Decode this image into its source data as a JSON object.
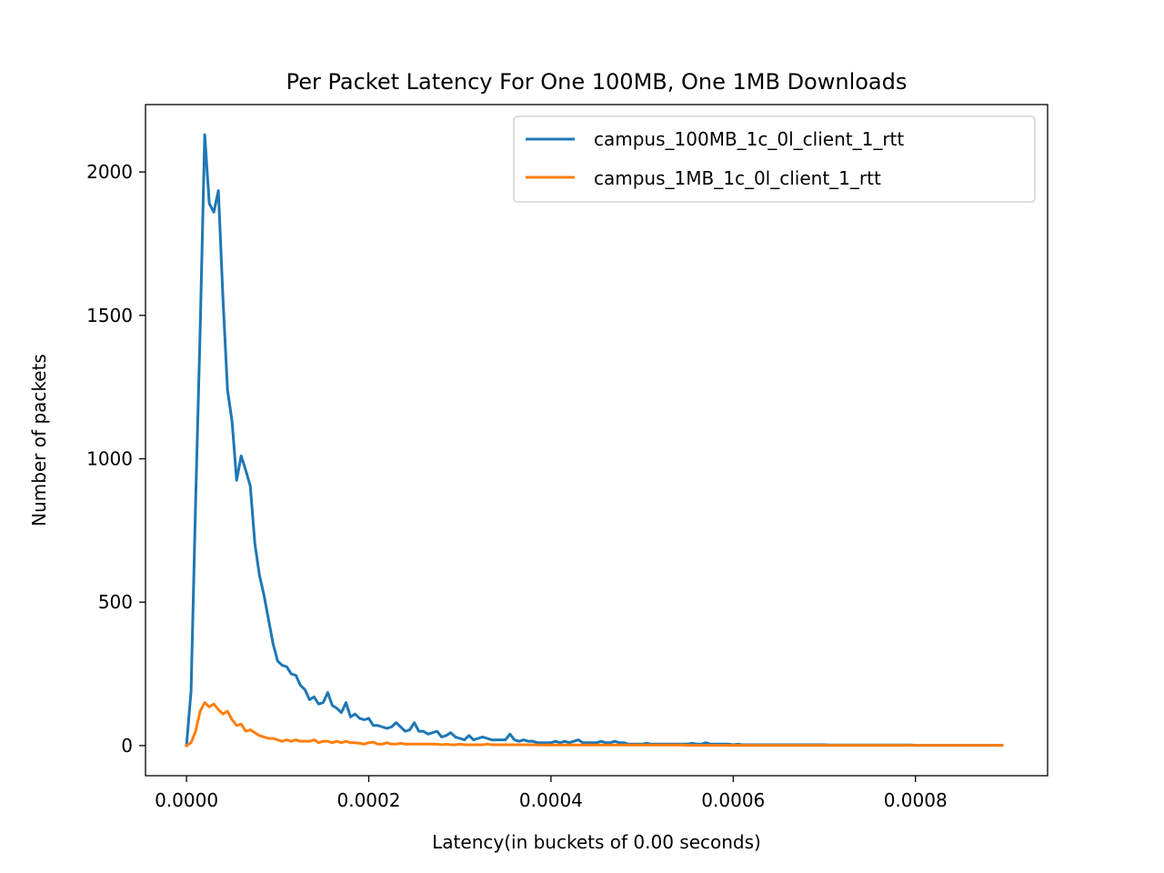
{
  "chart_data": {
    "type": "line",
    "title": "Per Packet Latency For One 100MB, One 1MB Downloads",
    "xlabel": "Latency(in buckets of 0.00 seconds)",
    "ylabel": "Number of packets",
    "xlim": [
      -4.5e-05,
      0.000945
    ],
    "ylim": [
      -105,
      2235
    ],
    "xticks": [
      0.0,
      0.0002,
      0.0004,
      0.0006,
      0.0008
    ],
    "xtick_labels": [
      "0.0000",
      "0.0002",
      "0.0004",
      "0.0006",
      "0.0008"
    ],
    "yticks": [
      0,
      500,
      1000,
      1500,
      2000
    ],
    "ytick_labels": [
      "0",
      "500",
      "1000",
      "1500",
      "2000"
    ],
    "grid": false,
    "legend_position": "top-right",
    "series": [
      {
        "name": "campus_100MB_1c_0l_client_1_rtt",
        "color": "#1f77b4",
        "x": [
          0.0,
          5e-06,
          1e-05,
          1.5e-05,
          2e-05,
          2.5e-05,
          3e-05,
          3.5e-05,
          4e-05,
          4.5e-05,
          5e-05,
          5.5e-05,
          6e-05,
          6.5e-05,
          7e-05,
          7.5e-05,
          8e-05,
          8.5e-05,
          9e-05,
          9.5e-05,
          0.0001,
          0.000105,
          0.00011,
          0.000115,
          0.00012,
          0.000125,
          0.00013,
          0.000135,
          0.00014,
          0.000145,
          0.00015,
          0.000155,
          0.00016,
          0.000165,
          0.00017,
          0.000175,
          0.00018,
          0.000185,
          0.00019,
          0.000195,
          0.0002,
          0.000205,
          0.00021,
          0.000215,
          0.00022,
          0.000225,
          0.00023,
          0.000235,
          0.00024,
          0.000245,
          0.00025,
          0.000255,
          0.00026,
          0.000265,
          0.00027,
          0.000275,
          0.00028,
          0.000285,
          0.00029,
          0.000295,
          0.0003,
          0.000305,
          0.00031,
          0.000315,
          0.00032,
          0.000325,
          0.00033,
          0.000335,
          0.00034,
          0.000345,
          0.00035,
          0.000355,
          0.00036,
          0.000365,
          0.00037,
          0.000375,
          0.00038,
          0.000385,
          0.00039,
          0.000395,
          0.0004,
          0.000405,
          0.00041,
          0.000415,
          0.00042,
          0.000425,
          0.00043,
          0.000435,
          0.00044,
          0.000445,
          0.00045,
          0.000455,
          0.00046,
          0.000465,
          0.00047,
          0.000475,
          0.00048,
          0.000485,
          0.00049,
          0.000495,
          0.0005,
          0.000505,
          0.00051,
          0.000515,
          0.00052,
          0.000525,
          0.00053,
          0.000535,
          0.00054,
          0.000545,
          0.00055,
          0.000555,
          0.00056,
          0.000565,
          0.00057,
          0.000575,
          0.00058,
          0.000585,
          0.00059,
          0.000595,
          0.0006,
          0.000605,
          0.00061,
          0.000615,
          0.00062,
          0.000625,
          0.00063,
          0.000635,
          0.00064,
          0.000645,
          0.00065,
          0.000655,
          0.00066,
          0.000665,
          0.00067,
          0.000675,
          0.00068,
          0.000685,
          0.00069,
          0.000695,
          0.0007,
          0.000705,
          0.00071,
          0.000715,
          0.00072,
          0.000725,
          0.00073,
          0.000735,
          0.00074,
          0.000745,
          0.00075,
          0.000755,
          0.00076,
          0.000765,
          0.00077,
          0.000775,
          0.00078,
          0.000785,
          0.00079,
          0.000795,
          0.0008,
          0.000805,
          0.00081,
          0.000815,
          0.00082,
          0.000825,
          0.00083,
          0.000835,
          0.00084,
          0.000845,
          0.00085,
          0.000855,
          0.00086,
          0.000865,
          0.00087,
          0.000875,
          0.00088,
          0.000885,
          0.00089,
          0.000895
        ],
        "y": [
          0,
          190,
          850,
          1450,
          2130,
          1890,
          1860,
          1935,
          1560,
          1240,
          1130,
          925,
          1010,
          960,
          905,
          705,
          595,
          525,
          440,
          355,
          295,
          280,
          275,
          250,
          245,
          210,
          195,
          160,
          170,
          145,
          150,
          185,
          140,
          130,
          115,
          150,
          100,
          110,
          95,
          90,
          95,
          70,
          70,
          65,
          60,
          65,
          80,
          65,
          50,
          55,
          80,
          50,
          50,
          40,
          45,
          50,
          30,
          35,
          45,
          30,
          25,
          20,
          35,
          20,
          25,
          30,
          25,
          20,
          20,
          20,
          20,
          40,
          20,
          15,
          20,
          15,
          15,
          10,
          10,
          10,
          10,
          15,
          10,
          15,
          10,
          15,
          20,
          10,
          10,
          10,
          10,
          15,
          10,
          10,
          15,
          10,
          10,
          5,
          5,
          5,
          5,
          8,
          5,
          5,
          5,
          5,
          5,
          5,
          5,
          5,
          5,
          8,
          5,
          5,
          10,
          5,
          5,
          5,
          5,
          5,
          3,
          5,
          3,
          3,
          3,
          3,
          3,
          3,
          3,
          3,
          3,
          3,
          3,
          3,
          3,
          3,
          3,
          3,
          3,
          3,
          3,
          2,
          2,
          2,
          2,
          2,
          2,
          2,
          2,
          2,
          2,
          2,
          2,
          2,
          2,
          2,
          2,
          2,
          2,
          2,
          1,
          1,
          1,
          1,
          1,
          1,
          1,
          1,
          1,
          1,
          1,
          1,
          1,
          1,
          1,
          1,
          1,
          1,
          1,
          1
        ]
      },
      {
        "name": "campus_1MB_1c_0l_client_1_rtt",
        "color": "#ff7f0e",
        "x": [
          0.0,
          5e-06,
          1e-05,
          1.5e-05,
          2e-05,
          2.5e-05,
          3e-05,
          3.5e-05,
          4e-05,
          4.5e-05,
          5e-05,
          5.5e-05,
          6e-05,
          6.5e-05,
          7e-05,
          7.5e-05,
          8e-05,
          8.5e-05,
          9e-05,
          9.5e-05,
          0.0001,
          0.000105,
          0.00011,
          0.000115,
          0.00012,
          0.000125,
          0.00013,
          0.000135,
          0.00014,
          0.000145,
          0.00015,
          0.000155,
          0.00016,
          0.000165,
          0.00017,
          0.000175,
          0.00018,
          0.000185,
          0.00019,
          0.000195,
          0.0002,
          0.000205,
          0.00021,
          0.000215,
          0.00022,
          0.000225,
          0.00023,
          0.000235,
          0.00024,
          0.000245,
          0.00025,
          0.000255,
          0.00026,
          0.000265,
          0.00027,
          0.000275,
          0.00028,
          0.000285,
          0.00029,
          0.000295,
          0.0003,
          0.000305,
          0.00031,
          0.000315,
          0.00032,
          0.000325,
          0.00033,
          0.000335,
          0.00034,
          0.000345,
          0.00035,
          0.000355,
          0.00036,
          0.000365,
          0.00037,
          0.000375,
          0.00038,
          0.000385,
          0.00039,
          0.000395,
          0.0004,
          0.000405,
          0.00041,
          0.000415,
          0.00042,
          0.000425,
          0.00043,
          0.000435,
          0.00044,
          0.000445,
          0.00045,
          0.000455,
          0.00046,
          0.000465,
          0.00047,
          0.000475,
          0.00048,
          0.000485,
          0.00049,
          0.000495,
          0.0005,
          0.000505,
          0.00051,
          0.000515,
          0.00052,
          0.000525,
          0.00053,
          0.000535,
          0.00054,
          0.000545,
          0.00055,
          0.000555,
          0.00056,
          0.000565,
          0.00057,
          0.000575,
          0.00058,
          0.000585,
          0.00059,
          0.000595,
          0.0006,
          0.000605,
          0.00061,
          0.000615,
          0.00062,
          0.000625,
          0.00063,
          0.000635,
          0.00064,
          0.000645,
          0.00065,
          0.000655,
          0.00066,
          0.000665,
          0.00067,
          0.000675,
          0.00068,
          0.000685,
          0.00069,
          0.000695,
          0.0007,
          0.000705,
          0.00071,
          0.000715,
          0.00072,
          0.000725,
          0.00073,
          0.000735,
          0.00074,
          0.000745,
          0.00075,
          0.000755,
          0.00076,
          0.000765,
          0.00077,
          0.000775,
          0.00078,
          0.000785,
          0.00079,
          0.000795,
          0.0008,
          0.000805,
          0.00081,
          0.000815,
          0.00082,
          0.000825,
          0.00083,
          0.000835,
          0.00084,
          0.000845,
          0.00085,
          0.000855,
          0.00086,
          0.000865,
          0.00087,
          0.000875,
          0.00088,
          0.000885,
          0.00089,
          0.000895
        ],
        "y": [
          0,
          10,
          50,
          120,
          150,
          135,
          145,
          125,
          110,
          120,
          90,
          70,
          75,
          50,
          55,
          45,
          35,
          30,
          25,
          25,
          20,
          15,
          20,
          15,
          20,
          15,
          15,
          15,
          20,
          10,
          15,
          15,
          10,
          15,
          10,
          15,
          10,
          10,
          8,
          5,
          10,
          12,
          5,
          5,
          10,
          5,
          5,
          8,
          5,
          5,
          5,
          5,
          5,
          5,
          5,
          5,
          3,
          5,
          3,
          3,
          5,
          3,
          3,
          3,
          3,
          3,
          5,
          3,
          3,
          3,
          3,
          3,
          3,
          3,
          3,
          3,
          3,
          2,
          2,
          2,
          2,
          2,
          2,
          2,
          2,
          2,
          2,
          2,
          2,
          2,
          2,
          2,
          2,
          2,
          2,
          2,
          2,
          2,
          2,
          2,
          2,
          2,
          2,
          2,
          2,
          2,
          2,
          2,
          2,
          2,
          1,
          1,
          1,
          1,
          1,
          1,
          1,
          1,
          1,
          1,
          1,
          1,
          1,
          1,
          1,
          1,
          1,
          1,
          1,
          1,
          1,
          1,
          1,
          1,
          1,
          1,
          1,
          1,
          1,
          1,
          1,
          1,
          1,
          1,
          1,
          1,
          1,
          1,
          1,
          1,
          1,
          1,
          1,
          1,
          1,
          1,
          1,
          1,
          1,
          1,
          1,
          1,
          1,
          1,
          1,
          1,
          1,
          1,
          1,
          1,
          1,
          1,
          1,
          1,
          1,
          1,
          1,
          1,
          1,
          1
        ]
      }
    ]
  }
}
